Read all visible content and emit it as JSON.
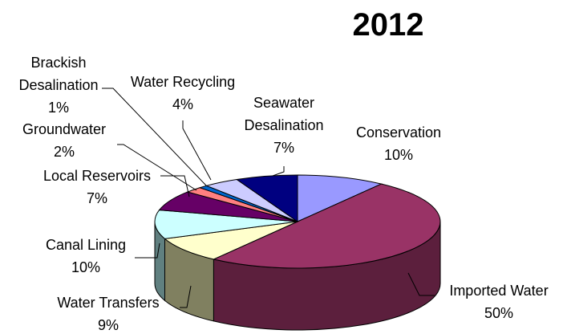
{
  "chart_data": {
    "type": "pie",
    "title": "2012",
    "three_d": true,
    "slices": [
      {
        "name": "Conservation",
        "value": 10,
        "label_pct": "10%",
        "color": "#9999ff",
        "side_color": "#5c5c99"
      },
      {
        "name": "Imported Water",
        "value": 50,
        "label_pct": "50%",
        "color": "#993366",
        "side_color": "#5c1f3d"
      },
      {
        "name": "Water Transfers",
        "value": 9,
        "label_pct": "9%",
        "color": "#ffffcc",
        "side_color": "#808060"
      },
      {
        "name": "Canal Lining",
        "value": 10,
        "label_pct": "10%",
        "color": "#ccffff",
        "side_color": "#608080"
      },
      {
        "name": "Local Reservoirs",
        "value": 7,
        "label_pct": "7%",
        "color": "#660066",
        "side_color": "#3d003d"
      },
      {
        "name": "Groundwater",
        "value": 2,
        "label_pct": "2%",
        "color": "#ff8080",
        "side_color": "#994d4d"
      },
      {
        "name": "Brackish Desalination",
        "value": 1,
        "label_pct": "1%",
        "color": "#0066cc",
        "side_color": "#003d7a"
      },
      {
        "name": "Water Recycling",
        "value": 4,
        "label_pct": "4%",
        "color": "#ccccff",
        "side_color": "#7a7a99"
      },
      {
        "name": "Seawater Desalination",
        "value": 7,
        "label_pct": "7%",
        "color": "#000080",
        "side_color": "#00004d"
      }
    ],
    "labels": [
      {
        "lines": [
          "Conservation",
          "10%"
        ]
      },
      {
        "lines": [
          "Imported Water",
          "50%"
        ]
      },
      {
        "lines": [
          "Water Transfers",
          "9%"
        ]
      },
      {
        "lines": [
          "Canal Lining",
          "10%"
        ]
      },
      {
        "lines": [
          "Local Reservoirs",
          "7%"
        ]
      },
      {
        "lines": [
          "Groundwater",
          "2%"
        ]
      },
      {
        "lines": [
          "Brackish",
          "Desalination",
          "1%"
        ]
      },
      {
        "lines": [
          "Water Recycling",
          "4%"
        ]
      },
      {
        "lines": [
          "Seawater",
          "Desalination",
          "7%"
        ]
      }
    ],
    "legend": "none",
    "grid": false
  }
}
